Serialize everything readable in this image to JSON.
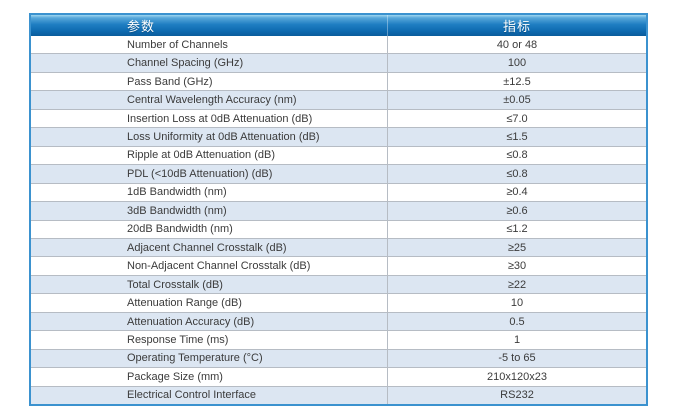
{
  "table": {
    "header": {
      "parameter_label": "参数",
      "value_label": "指标"
    },
    "rows": [
      {
        "parameter": "Number of Channels",
        "value": "40 or 48"
      },
      {
        "parameter": "Channel Spacing (GHz)",
        "value": "100"
      },
      {
        "parameter": "Pass Band (GHz)",
        "value": "±12.5"
      },
      {
        "parameter": "Central Wavelength Accuracy (nm)",
        "value": "±0.05"
      },
      {
        "parameter": "Insertion Loss at 0dB Attenuation (dB)",
        "value": "≤7.0"
      },
      {
        "parameter": "Loss Uniformity at 0dB Attenuation (dB)",
        "value": "≤1.5"
      },
      {
        "parameter": "Ripple at 0dB Attenuation (dB)",
        "value": "≤0.8"
      },
      {
        "parameter": "PDL (<10dB Attenuation) (dB)",
        "value": "≤0.8"
      },
      {
        "parameter": "1dB Bandwidth (nm)",
        "value": "≥0.4"
      },
      {
        "parameter": "3dB Bandwidth (nm)",
        "value": "≥0.6"
      },
      {
        "parameter": "20dB Bandwidth (nm)",
        "value": "≤1.2"
      },
      {
        "parameter": "Adjacent Channel Crosstalk (dB)",
        "value": "≥25"
      },
      {
        "parameter": "Non-Adjacent Channel Crosstalk (dB)",
        "value": "≥30"
      },
      {
        "parameter": "Total Crosstalk (dB)",
        "value": "≥22"
      },
      {
        "parameter": "Attenuation Range (dB)",
        "value": "10"
      },
      {
        "parameter": "Attenuation Accuracy (dB)",
        "value": "0.5"
      },
      {
        "parameter": "Response Time (ms)",
        "value": "1"
      },
      {
        "parameter": "Operating Temperature (°C)",
        "value": "-5 to 65"
      },
      {
        "parameter": "Package Size (mm)",
        "value": "210x120x23"
      },
      {
        "parameter": "Electrical Control Interface",
        "value": "RS232"
      }
    ]
  },
  "colors": {
    "border_blue": "#3b92cf",
    "header_gradient_top": "#9ed6f0",
    "header_gradient_mid": "#1f7ec2",
    "header_gradient_bottom": "#0a5c9c",
    "alt_row_blue": "#dce6f2",
    "divider_gray": "#b6bcc4",
    "text_gray": "#3b3b3b"
  }
}
